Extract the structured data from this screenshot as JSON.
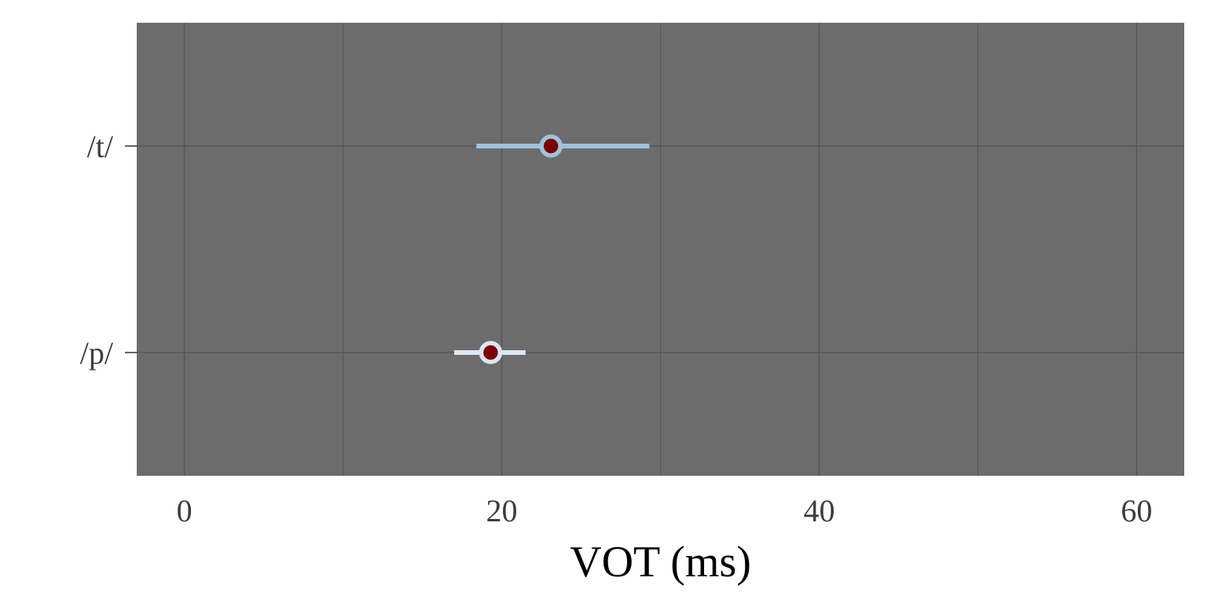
{
  "chart_data": {
    "type": "scatter",
    "title": "",
    "xlabel": "VOT (ms)",
    "ylabel": "",
    "xlim": [
      -3,
      63
    ],
    "x_ticks": [
      0,
      20,
      40,
      60
    ],
    "x_tick_labels": [
      "0",
      "20",
      "40",
      "60"
    ],
    "x_minor_ticks": [
      10,
      30,
      50
    ],
    "categories": [
      "/t/",
      "/p/"
    ],
    "grid": true,
    "legend": "none",
    "series": [
      {
        "category": "/t/",
        "x": 23.1,
        "low": 18.4,
        "high": 29.3,
        "color": "#9ec3df",
        "center_color": "#7a0000"
      },
      {
        "category": "/p/",
        "x": 19.3,
        "low": 17.0,
        "high": 21.5,
        "color": "#dbe6f2",
        "center_color": "#7a0000"
      }
    ],
    "colors": {
      "panel_background": "#6c6c6c",
      "gridline": "#575757",
      "page_background": "#ffffff"
    }
  }
}
